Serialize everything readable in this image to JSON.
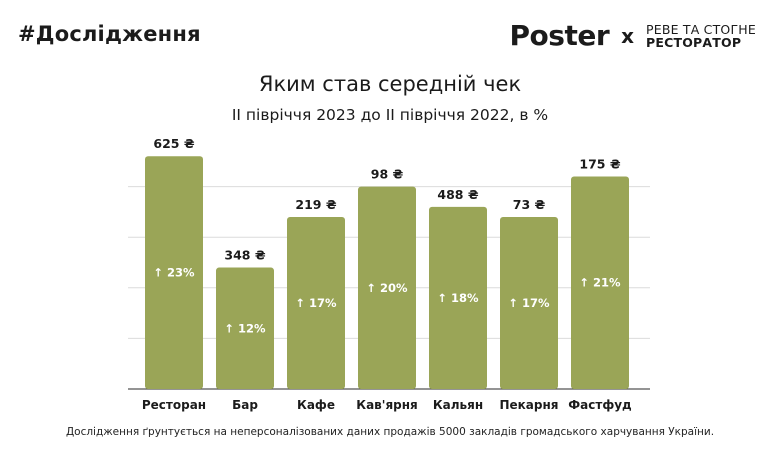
{
  "header": {
    "hashtag": "#Дослідження",
    "brand": "Poster",
    "cross": "x",
    "partner_line1": "РЕВЕ ТА СТОГНЕ",
    "partner_line2": "РЕСТОРАТОР"
  },
  "footnote": "Дослідження ґрунтується на неперсоналізованих даних продажів 5000 закладів громадського харчування України.",
  "colors": {
    "bar": "#9aa557",
    "grid": "#dcdcdc",
    "axis": "#555555",
    "text": "#1b1b1b"
  },
  "chart_data": {
    "type": "bar",
    "title": "Яким став середній чек",
    "subtitle": "II півріччя 2023 до II півріччя 2022, в %",
    "categories": [
      "Ресторан",
      "Бар",
      "Кафе",
      "Кав'ярня",
      "Кальян",
      "Пекарня",
      "Фастфуд"
    ],
    "values": [
      23,
      12,
      17,
      20,
      18,
      17,
      21
    ],
    "value_labels": [
      "↑ 23%",
      "↑ 12%",
      "↑ 17%",
      "↑ 20%",
      "↑ 18%",
      "↑ 17%",
      "↑ 21%"
    ],
    "top_labels": [
      "625 ₴",
      "348 ₴",
      "219 ₴",
      "98 ₴",
      "488 ₴",
      "73 ₴",
      "175 ₴"
    ],
    "ylim": [
      0,
      25
    ],
    "grid": true,
    "xlabel": "",
    "ylabel": ""
  }
}
